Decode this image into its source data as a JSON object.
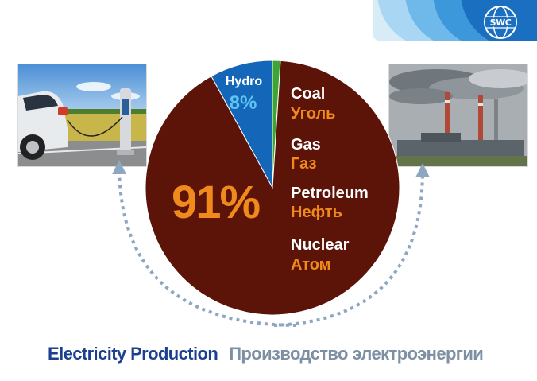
{
  "brand": {
    "logo_text": "SWC",
    "accent": "#1466b8"
  },
  "chart_data": {
    "type": "pie",
    "title": "",
    "slices": [
      {
        "label": "Hydro",
        "value": 8,
        "display": "8%",
        "color": "#1466b8"
      },
      {
        "label": "Other",
        "value": 1,
        "display": "",
        "color": "#3ca536"
      },
      {
        "label": "Coal, Gas, Petroleum, Nuclear",
        "value": 91,
        "display": "91%",
        "color": "#5c1409"
      }
    ],
    "sources": [
      {
        "en": "Coal",
        "ru": "Уголь"
      },
      {
        "en": "Gas",
        "ru": "Газ"
      },
      {
        "en": "Petroleum",
        "ru": "Нефть"
      },
      {
        "en": "Nuclear",
        "ru": "Атом"
      }
    ],
    "hydro": {
      "label": "Hydro",
      "value_text": "8%"
    },
    "big_value_text": "91%",
    "colors": {
      "label_orange": "#f08a1c",
      "hydro_text": "#5ec3ef",
      "arrows": "#8da6c2"
    }
  },
  "footer": {
    "title_en": "Electricity Production",
    "title_ru": "Производство  электроэнергии"
  }
}
